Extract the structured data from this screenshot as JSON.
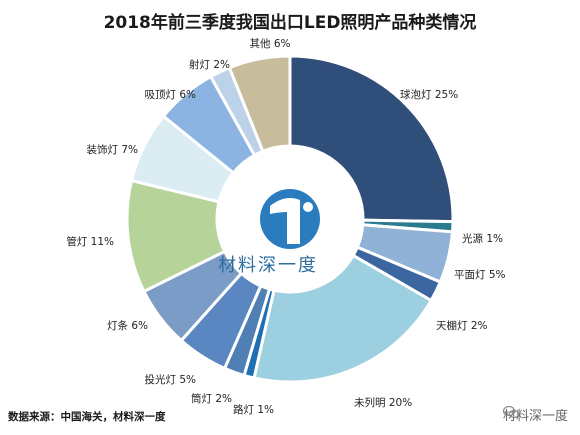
{
  "chart_data": {
    "type": "pie",
    "title": "2018年前三季度我国出口LED照明产品种类情况",
    "slices": [
      {
        "label": "球泡灯",
        "value": 25,
        "text": "25%",
        "color": "#2f4f7a"
      },
      {
        "label": "光源",
        "value": 1,
        "text": "1%",
        "color": "#2a7a90"
      },
      {
        "label": "平面灯",
        "value": 5,
        "text": "5%",
        "color": "#8fb2d6"
      },
      {
        "label": "天棚灯",
        "value": 2,
        "text": "2%",
        "color": "#3c66a0"
      },
      {
        "label": "未列明",
        "value": 20,
        "text": "20%",
        "color": "#9ccfe0"
      },
      {
        "label": "路灯",
        "value": 1,
        "text": "1%",
        "color": "#1f6fb5"
      },
      {
        "label": "筒灯",
        "value": 2,
        "text": "2%",
        "color": "#4f7fb4"
      },
      {
        "label": "投光灯",
        "value": 5,
        "text": "5%",
        "color": "#5a86c2"
      },
      {
        "label": "灯条",
        "value": 6,
        "text": "6%",
        "color": "#7b9cc6"
      },
      {
        "label": "管灯",
        "value": 11,
        "text": "11%",
        "color": "#b6d39a"
      },
      {
        "label": "装饰灯",
        "value": 7,
        "text": "7%",
        "color": "#dbecf3"
      },
      {
        "label": "吸顶灯",
        "value": 6,
        "text": "6%",
        "color": "#8cb4e2"
      },
      {
        "label": "射灯",
        "value": 2,
        "text": "2%",
        "color": "#bcd2e9"
      },
      {
        "label": "其他",
        "value": 6,
        "text": "6%",
        "color": "#c7bc9c"
      }
    ]
  },
  "footer": {
    "source": "数据来源：中国海关，材料深一度",
    "watermark": "材料深一度"
  },
  "logo": {
    "text": "材料深一度"
  }
}
